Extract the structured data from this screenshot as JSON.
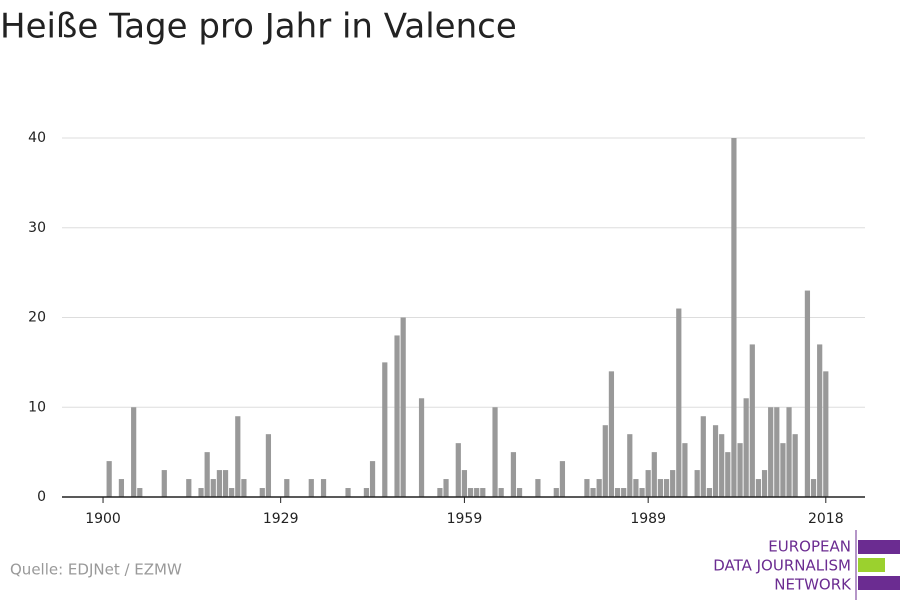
{
  "chart_data": {
    "type": "bar",
    "title": "Heiße Tage pro Jahr in Valence",
    "source": "Quelle: EDJNet / EZMW",
    "logo": [
      "EUROPEAN",
      "DATA JOURNALISM",
      "NETWORK"
    ],
    "color": "#999999",
    "x": [
      1900,
      1901,
      1902,
      1903,
      1904,
      1905,
      1906,
      1907,
      1908,
      1909,
      1910,
      1911,
      1912,
      1913,
      1914,
      1915,
      1916,
      1917,
      1918,
      1919,
      1920,
      1921,
      1922,
      1923,
      1924,
      1925,
      1926,
      1927,
      1928,
      1929,
      1930,
      1931,
      1932,
      1933,
      1934,
      1935,
      1936,
      1937,
      1938,
      1939,
      1940,
      1941,
      1942,
      1943,
      1944,
      1945,
      1946,
      1947,
      1948,
      1949,
      1950,
      1951,
      1952,
      1953,
      1954,
      1955,
      1956,
      1957,
      1958,
      1959,
      1960,
      1961,
      1962,
      1963,
      1964,
      1965,
      1966,
      1967,
      1968,
      1969,
      1970,
      1971,
      1972,
      1973,
      1974,
      1975,
      1976,
      1977,
      1978,
      1979,
      1980,
      1981,
      1982,
      1983,
      1984,
      1985,
      1986,
      1987,
      1988,
      1989,
      1990,
      1991,
      1992,
      1993,
      1994,
      1995,
      1996,
      1997,
      1998,
      1999,
      2000,
      2001,
      2002,
      2003,
      2004,
      2005,
      2006,
      2007,
      2008,
      2009,
      2010,
      2011,
      2012,
      2013,
      2014,
      2015,
      2016,
      2017,
      2018
    ],
    "values": [
      0,
      4,
      0,
      2,
      0,
      10,
      1,
      0,
      0,
      0,
      3,
      0,
      0,
      0,
      2,
      0,
      1,
      5,
      2,
      3,
      3,
      1,
      9,
      2,
      0,
      0,
      1,
      7,
      0,
      0,
      2,
      0,
      0,
      0,
      2,
      0,
      2,
      0,
      0,
      0,
      1,
      0,
      0,
      1,
      4,
      0,
      15,
      0,
      18,
      20,
      0,
      0,
      11,
      0,
      0,
      1,
      2,
      0,
      6,
      3,
      1,
      1,
      1,
      0,
      10,
      1,
      0,
      5,
      1,
      0,
      0,
      2,
      0,
      0,
      1,
      4,
      0,
      0,
      0,
      2,
      1,
      2,
      8,
      14,
      1,
      1,
      7,
      2,
      1,
      3,
      5,
      2,
      2,
      3,
      21,
      6,
      0,
      3,
      9,
      1,
      8,
      7,
      5,
      40,
      6,
      11,
      17,
      2,
      3,
      10,
      10,
      6,
      10,
      7,
      0,
      23,
      2,
      17,
      14
    ],
    "xlim": [
      1893.3,
      2024.4
    ],
    "xticks": [
      1900,
      1929,
      1959,
      1989,
      2018
    ],
    "ylim": [
      0,
      40
    ],
    "yticks": [
      0,
      10,
      20,
      30,
      40
    ],
    "grid": true
  }
}
